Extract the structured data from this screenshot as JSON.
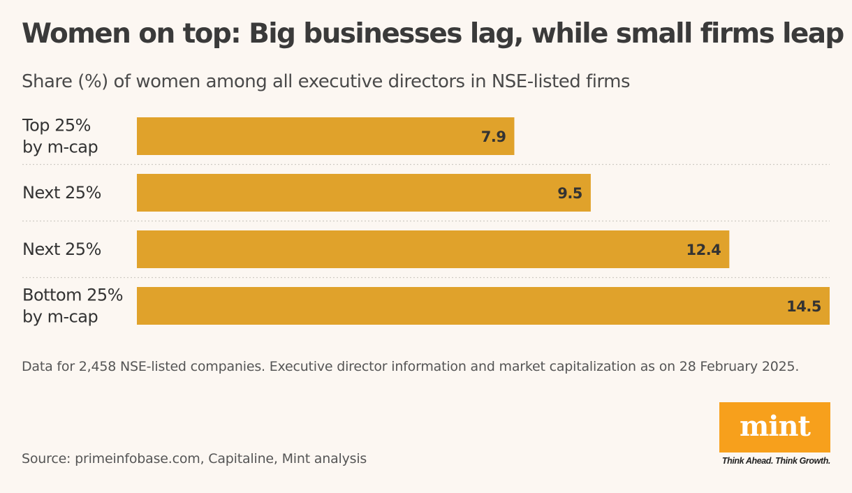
{
  "title": "Women on top: Big businesses lag, while small firms leap",
  "subtitle": "Share (%) of women among all executive directors in NSE-listed firms",
  "note": "Data for 2,458 NSE-listed companies. Executive director information and market capitalization as on 28 February 2025.",
  "source": "Source: primeinfobase.com, Capitaline, Mint analysis",
  "logo": {
    "wordmark": "mint",
    "tagline": "Think Ahead. Think Growth."
  },
  "colors": {
    "bar": "#e0a22b",
    "background": "#fcf7f2",
    "divider": "#cfcac4",
    "logo": "#f7a01c"
  },
  "chart_data": {
    "type": "bar",
    "orientation": "horizontal",
    "title": "Women on top: Big businesses lag, while small firms leap",
    "subtitle": "Share (%) of women among all executive directors in NSE-listed firms",
    "categories": [
      [
        "Top 25%",
        "by m-cap"
      ],
      [
        "Next 25%"
      ],
      [
        "Next 25%"
      ],
      [
        "Bottom 25%",
        "by m-cap"
      ]
    ],
    "values": [
      7.9,
      9.5,
      12.4,
      14.5
    ],
    "value_labels": [
      "7.9",
      "9.5",
      "12.4",
      "14.5"
    ],
    "xlim": [
      0,
      14.5
    ],
    "xlabel": "",
    "ylabel": "",
    "grid": false,
    "legend": "none"
  }
}
